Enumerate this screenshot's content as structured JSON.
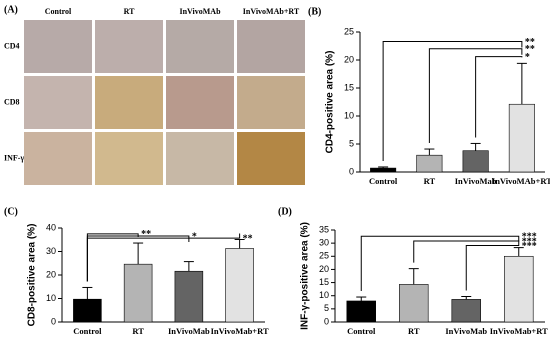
{
  "panel_a": {
    "label": "(A)",
    "columns": [
      "Control",
      "RT",
      "InVivoMAb",
      "InVivoMAb+RT"
    ],
    "rows": [
      "CD4",
      "CD8",
      "INF-γ"
    ]
  },
  "chart_data": [
    {
      "type": "bar",
      "panel": "(B)",
      "ylabel": "CD4-positive area (%)",
      "categories": [
        "Control",
        "RT",
        "InVivoMab",
        "InVivoMAb+RT"
      ],
      "values": [
        0.7,
        3.0,
        3.8,
        12.1
      ],
      "errors": [
        0.2,
        1.1,
        1.3,
        7.3
      ],
      "colors": [
        "#000000",
        "#b4b4b4",
        "#646464",
        "#e2e2e2"
      ],
      "ylim": [
        0,
        25
      ],
      "yticks": [
        0,
        5,
        10,
        15,
        20,
        25
      ],
      "annotations": [
        "**",
        "**",
        "*"
      ]
    },
    {
      "type": "bar",
      "panel": "(C)",
      "ylabel": "CD8-positive area (%)",
      "categories": [
        "Control",
        "RT",
        "InVivoMab",
        "InVivoMab+RT"
      ],
      "values": [
        9.7,
        24.6,
        21.6,
        31.3
      ],
      "errors": [
        5.0,
        9.0,
        4.1,
        3.8
      ],
      "colors": [
        "#000000",
        "#b4b4b4",
        "#646464",
        "#e2e2e2"
      ],
      "ylim": [
        0,
        40
      ],
      "yticks": [
        0,
        10,
        20,
        30,
        40
      ],
      "annotations": [
        "**",
        "*",
        "**"
      ]
    },
    {
      "type": "bar",
      "panel": "(D)",
      "ylabel": "INF-γ-positive area (%)",
      "categories": [
        "Control",
        "RT",
        "InVivoMab",
        "InVivoMab+RT"
      ],
      "values": [
        8.0,
        14.3,
        8.6,
        25.0
      ],
      "errors": [
        1.5,
        6.0,
        1.1,
        3.3
      ],
      "colors": [
        "#000000",
        "#b4b4b4",
        "#646464",
        "#e2e2e2"
      ],
      "ylim": [
        0,
        35
      ],
      "yticks": [
        0,
        5,
        10,
        15,
        20,
        25,
        30,
        35
      ],
      "annotations": [
        "***",
        "***",
        "***"
      ]
    }
  ]
}
